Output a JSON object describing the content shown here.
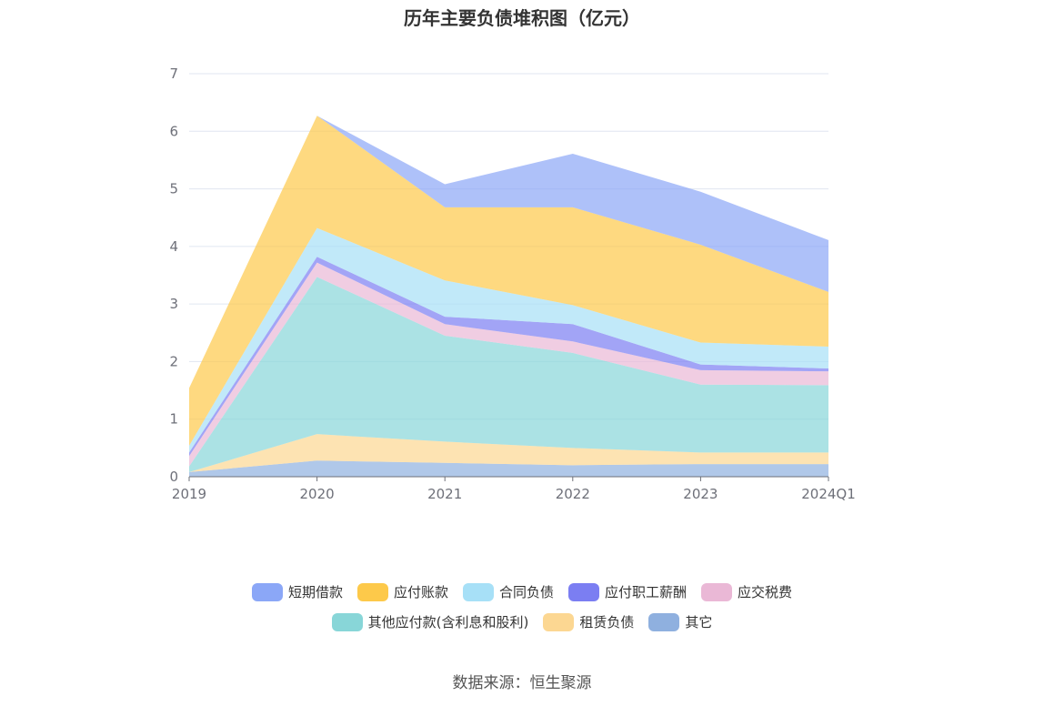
{
  "chart_data": {
    "type": "area",
    "stacked": true,
    "title": "历年主要负债堆积图（亿元）",
    "categories": [
      "2019",
      "2020",
      "2021",
      "2022",
      "2023",
      "2024Q1"
    ],
    "ylim": [
      0,
      7
    ],
    "yticks": [
      0,
      1,
      2,
      3,
      4,
      5,
      6,
      7
    ],
    "grid": true,
    "legend_position": "bottom",
    "series": [
      {
        "name": "其它",
        "color": "#8fb0df",
        "values": [
          0.08,
          0.28,
          0.24,
          0.2,
          0.22,
          0.22
        ]
      },
      {
        "name": "租赁负债",
        "color": "#fcd792",
        "values": [
          0.0,
          0.46,
          0.37,
          0.3,
          0.2,
          0.2
        ]
      },
      {
        "name": "其他应付款(含利息和股利)",
        "color": "#88d6d8",
        "values": [
          0.1,
          2.73,
          1.84,
          1.65,
          1.18,
          1.17
        ]
      },
      {
        "name": "应交税费",
        "color": "#eab8d6",
        "values": [
          0.18,
          0.25,
          0.2,
          0.2,
          0.25,
          0.24
        ]
      },
      {
        "name": "应付职工薪酬",
        "color": "#7b7ef2",
        "values": [
          0.06,
          0.1,
          0.13,
          0.3,
          0.1,
          0.05
        ]
      },
      {
        "name": "合同负债",
        "color": "#a7e0f7",
        "values": [
          0.12,
          0.5,
          0.63,
          0.33,
          0.38,
          0.38
        ]
      },
      {
        "name": "应付账款",
        "color": "#fdc94a",
        "values": [
          1.0,
          1.95,
          1.27,
          1.7,
          1.7,
          0.95
        ]
      },
      {
        "name": "短期借款",
        "color": "#8ba7f7",
        "values": [
          0.0,
          0.0,
          0.4,
          0.93,
          0.92,
          0.9
        ]
      }
    ]
  },
  "legend": {
    "row1": [
      {
        "label": "短期借款",
        "color": "#8ba7f7"
      },
      {
        "label": "应付账款",
        "color": "#fdc94a"
      },
      {
        "label": "合同负债",
        "color": "#a7e0f7"
      },
      {
        "label": "应付职工薪酬",
        "color": "#7b7ef2"
      },
      {
        "label": "应交税费",
        "color": "#eab8d6"
      }
    ],
    "row2": [
      {
        "label": "其他应付款(含利息和股利)",
        "color": "#88d6d8"
      },
      {
        "label": "租赁负债",
        "color": "#fcd792"
      },
      {
        "label": "其它",
        "color": "#8fb0df"
      }
    ]
  },
  "source": "数据来源：恒生聚源"
}
